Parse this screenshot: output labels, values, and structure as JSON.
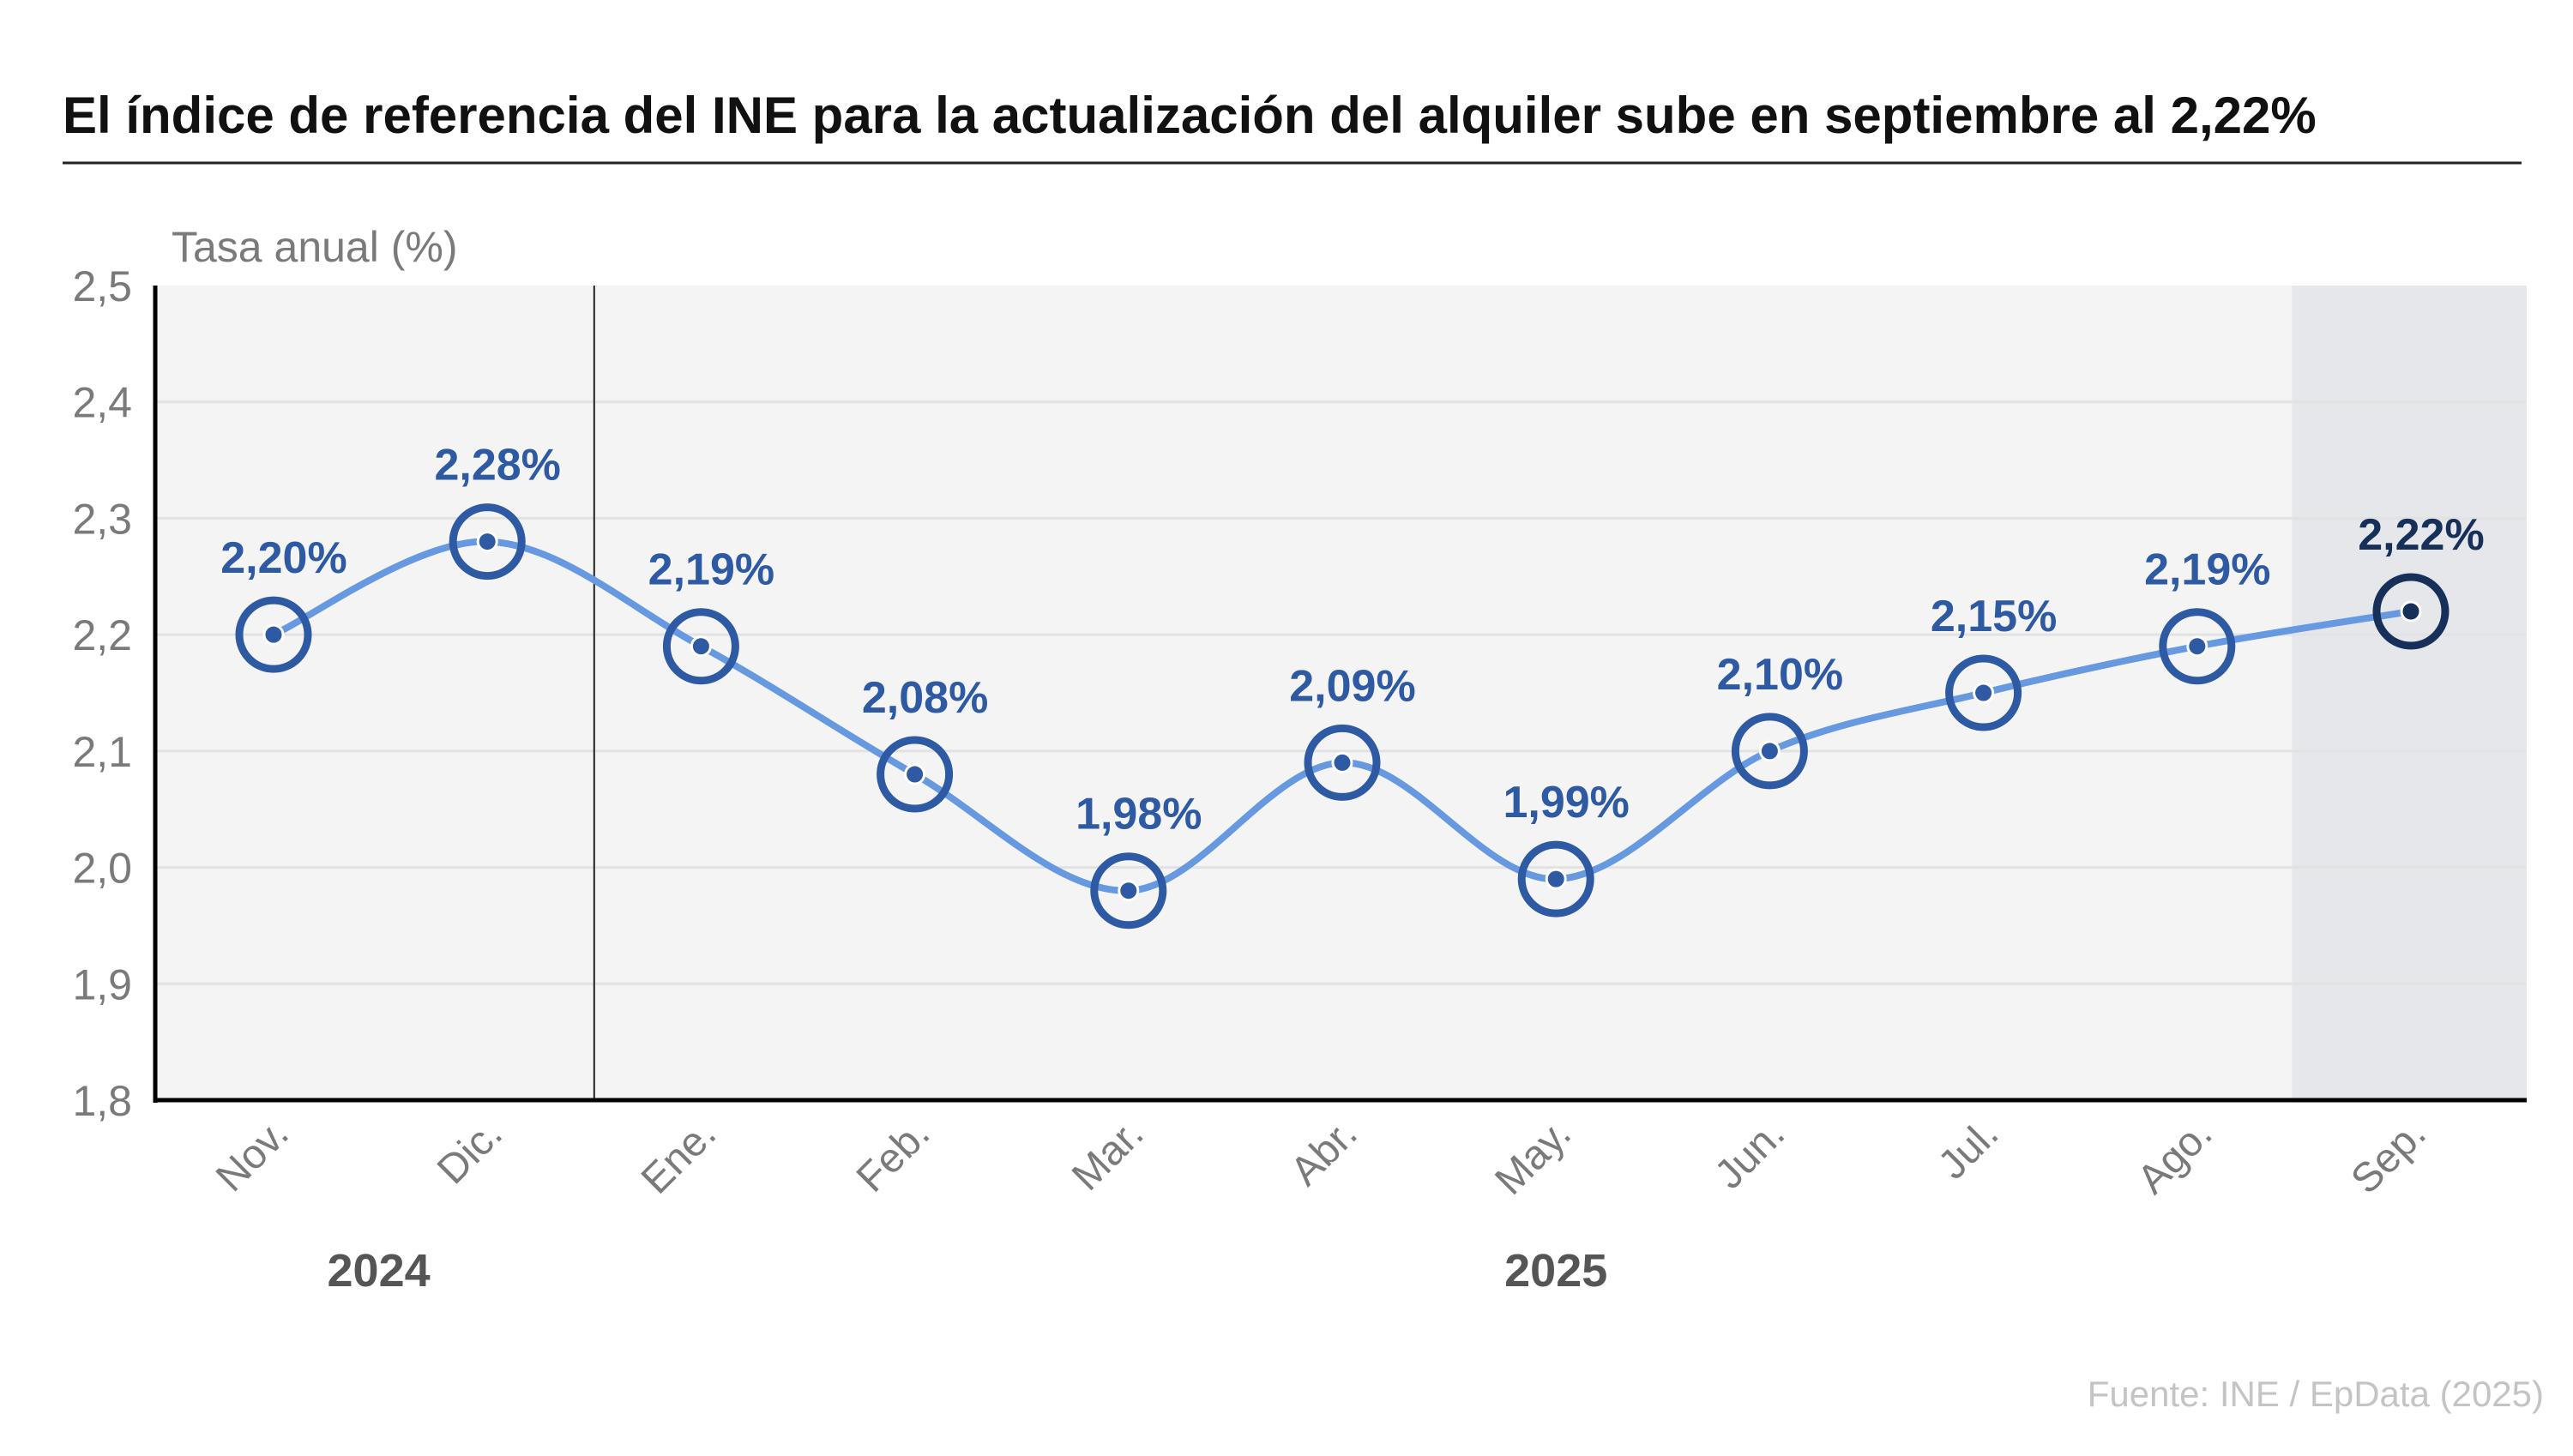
{
  "title": "El índice de referencia del INE para la actualización del alquiler sube en septiembre al 2,22%",
  "source": "Fuente: INE / EpData (2025)",
  "colors": {
    "line": "#6699e0",
    "marker": "#2e59a3",
    "highlight": "#16305a",
    "plot_bg": "#f4f4f4",
    "highlight_bg": "#e5e7eb"
  },
  "chart_data": {
    "type": "line",
    "title": "El índice de referencia del INE para la actualización del alquiler sube en septiembre al 2,22%",
    "ylabel": "Tasa anual (%)",
    "xlabel": "",
    "ylim": [
      1.8,
      2.5
    ],
    "yticks": [
      "2,5",
      "2,4",
      "2,3",
      "2,2",
      "2,1",
      "2,0",
      "1,9",
      "1,8"
    ],
    "ytick_values": [
      2.5,
      2.4,
      2.3,
      2.2,
      2.1,
      2.0,
      1.9,
      1.8
    ],
    "grid": true,
    "categories": [
      "Nov.",
      "Dic.",
      "Ene.",
      "Feb.",
      "Mar.",
      "Abr.",
      "May.",
      "Jun.",
      "Jul.",
      "Ago.",
      "Sep."
    ],
    "years": [
      {
        "label": "2024",
        "months": [
          "Nov.",
          "Dic."
        ]
      },
      {
        "label": "2025",
        "months": [
          "Ene.",
          "Feb.",
          "Mar.",
          "Abr.",
          "May.",
          "Jun.",
          "Jul.",
          "Ago.",
          "Sep."
        ]
      }
    ],
    "values": [
      2.2,
      2.28,
      2.19,
      2.08,
      1.98,
      2.09,
      1.99,
      2.1,
      2.15,
      2.19,
      2.22
    ],
    "data_labels": [
      "2,20%",
      "2,28%",
      "2,19%",
      "2,08%",
      "1,98%",
      "2,09%",
      "1,99%",
      "2,10%",
      "2,15%",
      "2,19%",
      "2,22%"
    ],
    "highlighted": "Sep."
  }
}
